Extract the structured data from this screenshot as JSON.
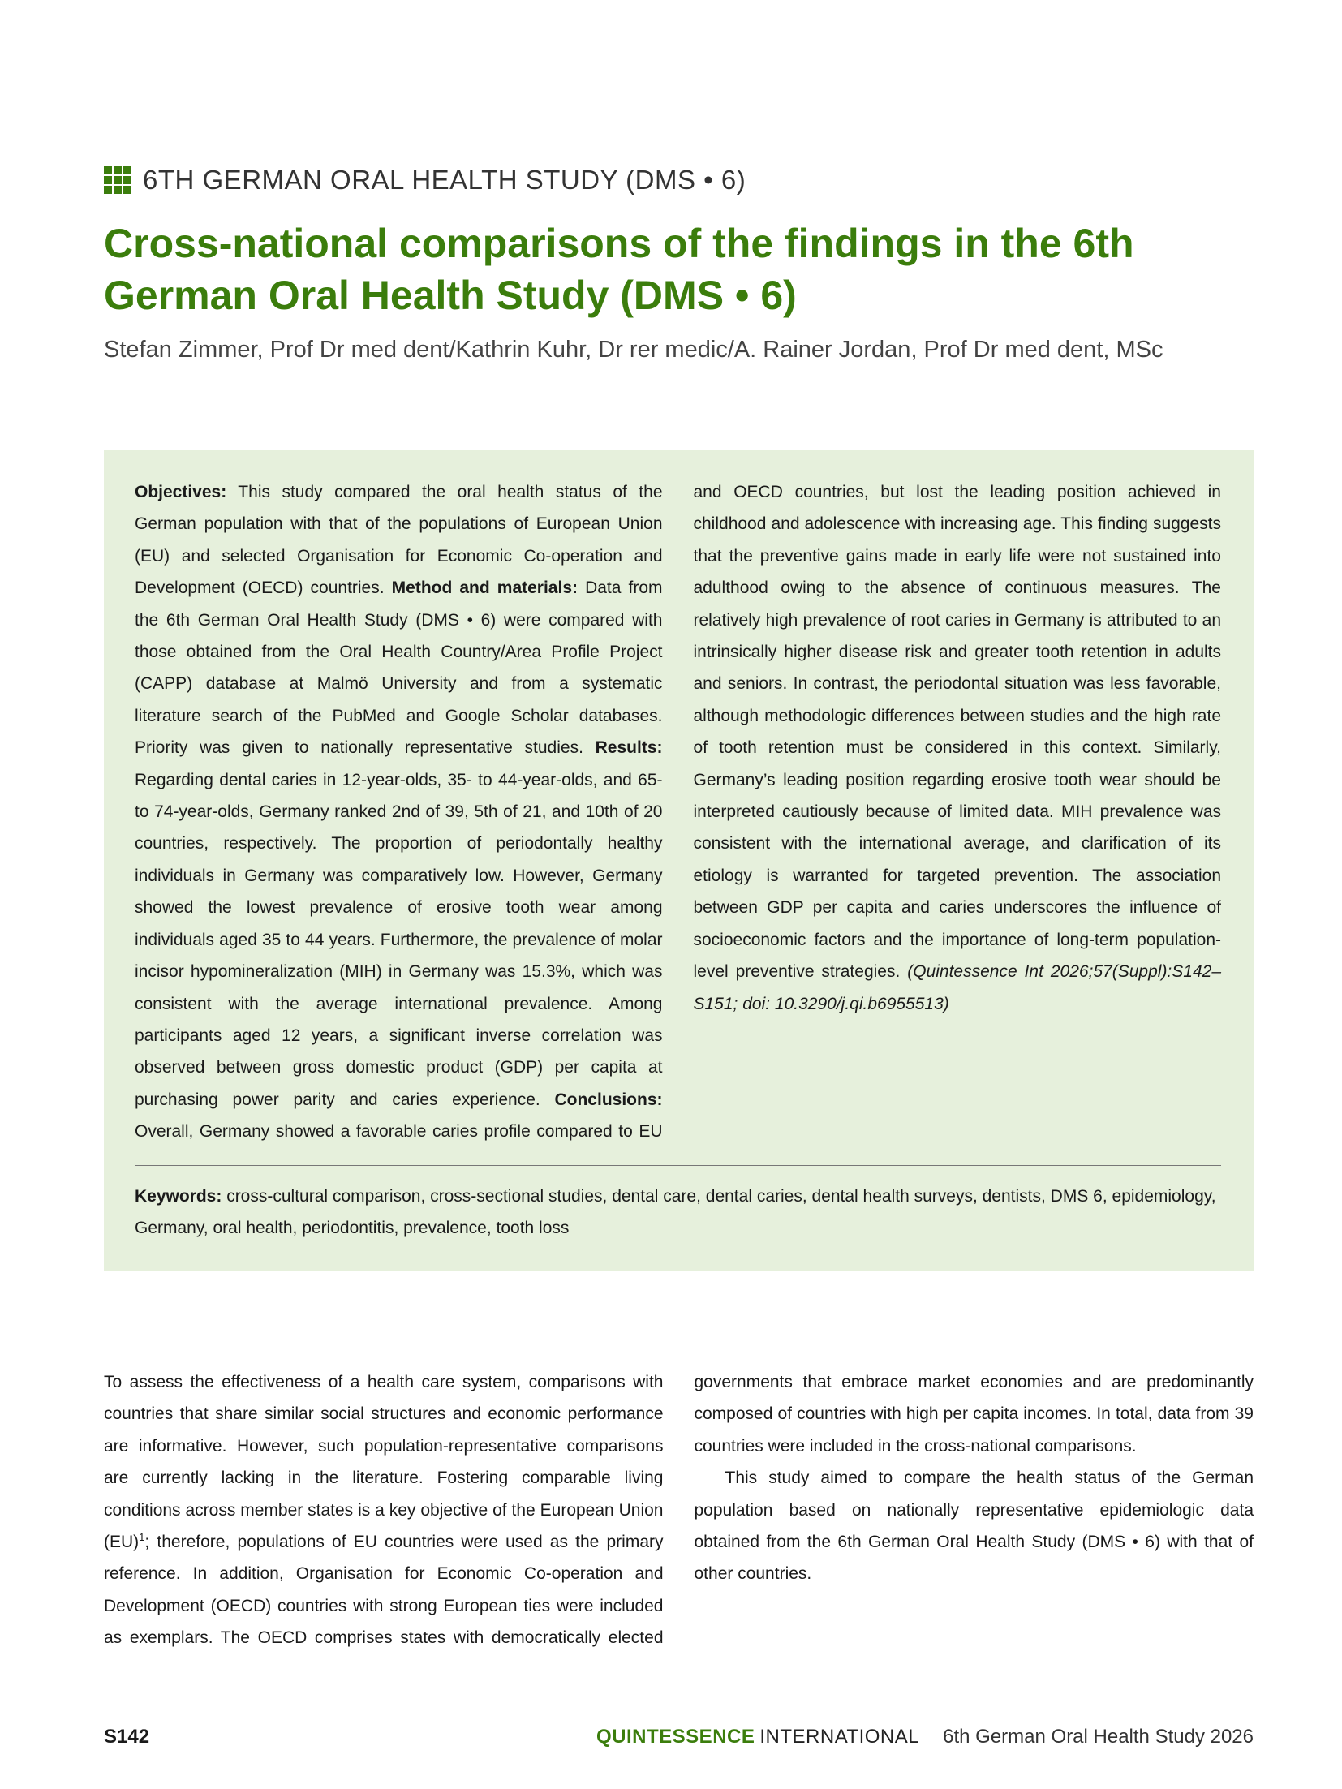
{
  "header": {
    "kicker": "6TH GERMAN ORAL HEALTH STUDY (DMS • 6)",
    "kicker_icon": "grid-squares-icon",
    "title": "Cross-national comparisons of the findings in the 6th German Oral Health Study (DMS • 6)",
    "authors": "Stefan Zimmer, Prof Dr med dent/Kathrin Kuhr, Dr rer medic/A. Rainer Jordan, Prof Dr med dent, MSc"
  },
  "abstract": {
    "objectives_label": "Objectives:",
    "objectives_text": " This study compared the oral health status of the German population with that of the populations of European Union (EU) and selected Organisation for Economic Co-operation and Development (OECD) countries. ",
    "methods_label": "Method and materials:",
    "methods_text": " Data from the 6th German Oral Health Study (DMS • 6) were compared with those obtained from the Oral Health Country/Area Profile Project (CAPP) database at Malmö University and from a systematic literature search of the PubMed and Google Scholar databases. Priority was given to nationally representative studies. ",
    "results_label": "Results:",
    "results_text": " Regarding dental caries in 12-year-olds, 35- to 44-year-olds, and 65- to 74-year-olds, Germany ranked 2nd of 39, 5th of 21, and 10th of 20 countries, respectively. The proportion of periodontally healthy individuals in Germany was comparatively low. However, Germany showed the lowest prevalence of erosive tooth wear among individuals aged 35 to 44 years. Furthermore, the prevalence of molar incisor hypomineralization (MIH) in Germany was 15.3%, which was consistent with the average international prevalence. Among participants aged 12 years, a significant inverse correlation was observed between gross domestic product (GDP) per capita at purchasing power parity and caries experience. ",
    "conclusions_label": "Conclusions:",
    "conclusions_text": " Overall, Germany showed a favorable caries profile compared to EU and OECD countries, but lost the leading position achieved in childhood and adolescence with increasing age. This finding suggests that the preventive gains made in early life were not sustained into adulthood owing to the absence of continuous measures. The relatively high prevalence of root caries in Germany is attributed to an intrinsically higher disease risk and greater tooth retention in adults and seniors. In contrast, the periodontal situation was less favorable, although methodologic differences between studies and the high rate of tooth retention must be considered in this context. Similarly, Germany’s leading position regarding erosive tooth wear should be interpreted cautiously because of limited data. MIH prevalence was consistent with the international average, and clarification of its etiology is warranted for targeted prevention. The association between GDP per capita and caries underscores the influence of socioeconomic factors and the importance of long-term population-level preventive strategies. ",
    "citation": "(Quintessence Int 2026;57(Suppl):S142–S151; doi: 10.3290/j.qi.b6955513)",
    "keywords_label": "Keywords:",
    "keywords_text": " cross-cultural comparison, cross-sectional studies, dental care, dental caries, dental health surveys, dentists, DMS 6, epidemiology, Germany, oral health, periodontitis, prevalence, tooth loss"
  },
  "body": {
    "p1_a": "To assess the effectiveness of a health care system, comparisons with countries that share similar social structures and economic performance are informative. However, such population-representative comparisons are currently lacking in the literature. Fostering comparable living conditions across member states is a key objective of the European Union (EU)",
    "p1_ref": "1",
    "p1_b": "; therefore, populations of EU countries were used as the primary reference. In addition, Organisation for Economic Co-operation and Development (OECD) countries with strong European ties were included as exemplars. The OECD comprises states with democratically elected governments that embrace market economies and are predominantly composed of countries with high per capita incomes. In total, data from 39 countries were included in the cross-national comparisons.",
    "p2": "This study aimed to compare the health status of the German population based on nationally representative epidemiologic data obtained from the 6th German Oral Health Study (DMS • 6) with that of other countries."
  },
  "footer": {
    "page": "S142",
    "brand_bold": "QUINTESSENCE",
    "brand_light": "INTERNATIONAL",
    "journal": "6th German Oral Health Study 2026"
  },
  "colors": {
    "accent": "#3b7d0c",
    "abstract_bg": "#e6f0dc"
  }
}
